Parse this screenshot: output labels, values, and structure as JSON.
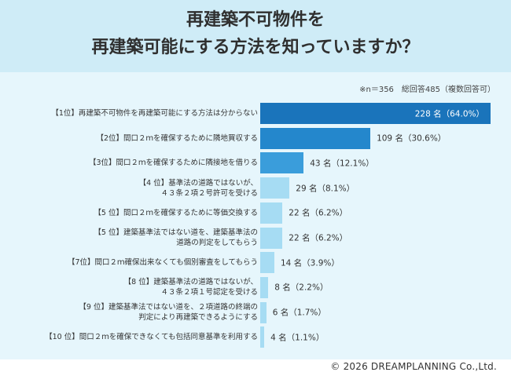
{
  "title_lines": [
    "再建築不可物件を",
    "再建築可能にする方法を知っていますか？"
  ],
  "note": "※n＝356　総回答485（複数回答可）",
  "copyright": "© 2026 DREAMPLANNING Co.,Ltd.",
  "colors": {
    "header_bg": "#cfecf7",
    "panel_bg": "#e6f6fc",
    "bar_rank1": "#1a74bb",
    "bar_rank2": "#2487cc",
    "bar_rank3": "#3a9ddb",
    "bar_rest": "#a6dcf3"
  },
  "chart_data": {
    "type": "bar",
    "orientation": "horizontal",
    "unit": "名",
    "categories": [
      "【1位】再建築不可物件を再建築可能にする方法は分からない",
      "【2位】間口２ｍを確保するために隣地買収する",
      "【3位】間口２ｍを確保するために隣接地を借りる",
      "【4 位】基準法の道路ではないが、\n４３条２項２号許可を受ける",
      "【5 位】間口２ｍを確保するために等価交換する",
      "【5 位】建築基準法ではない道を、建築基準法の\n道路の判定をしてもらう",
      "【7位】間口２ｍ確保出来なくても個別審査をしてもらう",
      "【8 位】建築基準法の道路ではないが、\n４３条２項１号認定を受ける",
      "【9 位】建築基準法ではない道を、２項道路の終端の\n判定により再建築できるようにする",
      "【10 位】間口２ｍを確保できなくても包括同意基準を利用する"
    ],
    "values": [
      228,
      109,
      43,
      29,
      22,
      22,
      14,
      8,
      6,
      4
    ],
    "percent": [
      64.0,
      30.6,
      12.1,
      8.1,
      6.2,
      6.2,
      3.9,
      2.2,
      1.7,
      1.1
    ],
    "value_labels": [
      "228 名（64.0%）",
      "109 名（30.6%）",
      "43 名（12.1%）",
      "29 名（8.1%）",
      "22 名（6.2%）",
      "22 名（6.2%）",
      "14 名（3.9%）",
      "8 名（2.2%）",
      "6 名（1.7%）",
      "4 名（1.1%）"
    ],
    "xlim": [
      0,
      228
    ]
  }
}
